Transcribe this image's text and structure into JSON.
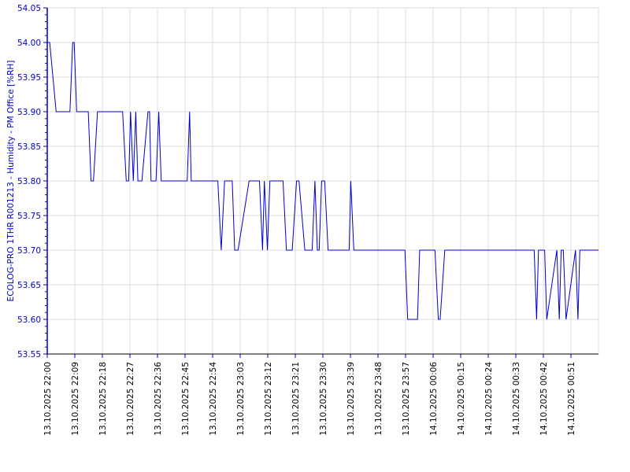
{
  "chart_data": {
    "type": "line",
    "ylabel": "ECOLOG-PRO 1THR R001213 - Humidity - PM Office [%RH]",
    "ylim": [
      53.55,
      54.05
    ],
    "y_ticks": [
      "53.55",
      "53.60",
      "53.65",
      "53.70",
      "53.75",
      "53.80",
      "53.85",
      "53.90",
      "53.95",
      "54.00",
      "54.05"
    ],
    "x_range_minutes": [
      0,
      180
    ],
    "x_ticks": [
      "13.10.2025 22:00",
      "13.10.2025 22:09",
      "13.10.2025 22:18",
      "13.10.2025 22:27",
      "13.10.2025 22:36",
      "13.10.2025 22:45",
      "13.10.2025 22:54",
      "13.10.2025 23:03",
      "13.10.2025 23:12",
      "13.10.2025 23:21",
      "13.10.2025 23:30",
      "13.10.2025 23:39",
      "13.10.2025 23:48",
      "13.10.2025 23:57",
      "14.10.2025 00:06",
      "14.10.2025 00:15",
      "14.10.2025 00:24",
      "14.10.2025 00:33",
      "14.10.2025 00:42",
      "14.10.2025 00:51"
    ],
    "grid": true,
    "colors": {
      "line": "#0000cc",
      "axis": "#0000cc",
      "grid": "#dddddd"
    },
    "series": [
      {
        "name": "",
        "x": [
          0,
          0.8,
          2.9,
          7.4,
          8.3,
          8.8,
          9.6,
          13.4,
          14.3,
          15.1,
          16.4,
          24.6,
          25.8,
          26.6,
          27.2,
          28.1,
          28.9,
          29.6,
          30.9,
          32.9,
          33.4,
          33.9,
          35.5,
          36.4,
          37.2,
          37.6,
          38.1,
          39.5,
          41.3,
          42.3,
          44.4,
          45.7,
          46.5,
          47.0,
          47.6,
          55.7,
          56.8,
          57.9,
          60.4,
          61.2,
          62.3,
          65.9,
          68.0,
          69.3,
          70.3,
          70.9,
          71.9,
          72.7,
          77.0,
          78.1,
          79.6,
          80.0,
          81.4,
          82.2,
          84.1,
          86.5,
          87.4,
          88.2,
          88.8,
          89.6,
          90.6,
          91.7,
          93.8,
          94.6,
          95.1,
          98.6,
          99.1,
          100.1,
          116.8,
          117.7,
          120.9,
          121.6,
          126.6,
          127.7,
          128.3,
          129.8,
          130.3,
          131.2,
          159.0,
          159.8,
          160.4,
          162.4,
          163.1,
          166.4,
          167.2,
          167.8,
          168.5,
          169.4,
          172.5,
          173.3,
          173.9,
          174.7,
          175.5,
          180.0
        ],
        "y": [
          54.0,
          54.0,
          53.9,
          53.9,
          54.0,
          54.0,
          53.9,
          53.9,
          53.8,
          53.8,
          53.9,
          53.9,
          53.8,
          53.8,
          53.9,
          53.8,
          53.9,
          53.8,
          53.8,
          53.9,
          53.9,
          53.8,
          53.8,
          53.9,
          53.8,
          53.8,
          53.8,
          53.8,
          53.8,
          53.8,
          53.8,
          53.8,
          53.9,
          53.8,
          53.8,
          53.8,
          53.7,
          53.8,
          53.8,
          53.7,
          53.7,
          53.8,
          53.8,
          53.8,
          53.7,
          53.8,
          53.7,
          53.8,
          53.8,
          53.7,
          53.7,
          53.7,
          53.8,
          53.8,
          53.7,
          53.7,
          53.8,
          53.7,
          53.7,
          53.8,
          53.8,
          53.7,
          53.7,
          53.7,
          53.7,
          53.7,
          53.8,
          53.7,
          53.7,
          53.6,
          53.6,
          53.7,
          53.7,
          53.6,
          53.6,
          53.7,
          53.7,
          53.7,
          53.7,
          53.6,
          53.7,
          53.7,
          53.6,
          53.7,
          53.6,
          53.7,
          53.7,
          53.6,
          53.7,
          53.6,
          53.7,
          53.7,
          53.7,
          53.7
        ]
      }
    ]
  }
}
